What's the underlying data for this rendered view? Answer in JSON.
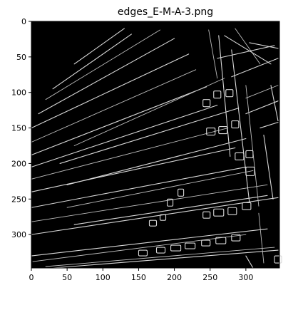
{
  "chart_data": {
    "type": "image",
    "title": "edges_E-M-A-3.png",
    "xlabel": "",
    "ylabel": "",
    "xlim": [
      0,
      347
    ],
    "ylim": [
      347,
      0
    ],
    "x_ticks": [
      0,
      50,
      100,
      150,
      200,
      250,
      300
    ],
    "y_ticks": [
      0,
      50,
      100,
      150,
      200,
      250,
      300
    ],
    "image_background": "#000000",
    "edge_color": "#d8d8d8",
    "grid": false,
    "legend": "none"
  }
}
